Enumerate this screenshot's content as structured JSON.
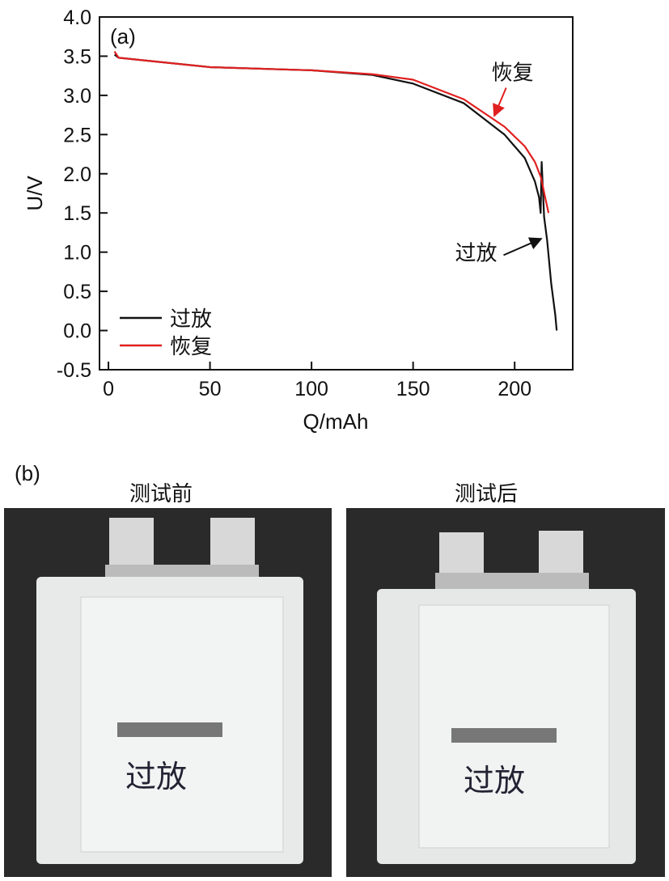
{
  "chart_data": {
    "type": "line",
    "panel_label": "(a)",
    "xlabel": "Q/mAh",
    "ylabel": "U/V",
    "xlim": [
      -4.4,
      228.6
    ],
    "ylim": [
      -0.5,
      4.0
    ],
    "xticks": [
      0,
      50,
      100,
      150,
      200
    ],
    "yticks": [
      -0.5,
      0.0,
      0.5,
      1.0,
      1.5,
      2.0,
      2.5,
      3.0,
      3.5,
      4.0
    ],
    "grid": false,
    "legend_placement": "bottom-left",
    "series": [
      {
        "name": "过放",
        "color": "#111111",
        "x": [
          3,
          5,
          20,
          50,
          100,
          130,
          150,
          175,
          195,
          205,
          210,
          212,
          212.8,
          213.3,
          214.5,
          216,
          218,
          220,
          220.7
        ],
        "y": [
          3.52,
          3.48,
          3.44,
          3.36,
          3.32,
          3.26,
          3.15,
          2.9,
          2.5,
          2.2,
          1.9,
          1.7,
          1.5,
          2.15,
          1.45,
          1.15,
          0.6,
          0.2,
          0.0
        ]
      },
      {
        "name": "恢复",
        "color": "#e02020",
        "x": [
          3,
          5,
          20,
          50,
          100,
          130,
          150,
          175,
          195,
          205,
          210,
          213,
          215,
          216.7
        ],
        "y": [
          3.56,
          3.48,
          3.44,
          3.36,
          3.32,
          3.27,
          3.2,
          2.95,
          2.6,
          2.35,
          2.15,
          1.95,
          1.7,
          1.5
        ]
      }
    ],
    "annotations": [
      {
        "text": "恢复",
        "x": 199,
        "y": 3.2,
        "target_x": 190,
        "target_y": 2.74,
        "color": "#e02020"
      },
      {
        "text": "过放",
        "x": 181,
        "y": 0.9,
        "target_x": 213,
        "target_y": 1.17,
        "color": "#111111"
      }
    ]
  },
  "panel_b": {
    "label": "(b)",
    "before_caption": "测试前",
    "after_caption": "测试后",
    "photo_handwriting": "过放"
  }
}
